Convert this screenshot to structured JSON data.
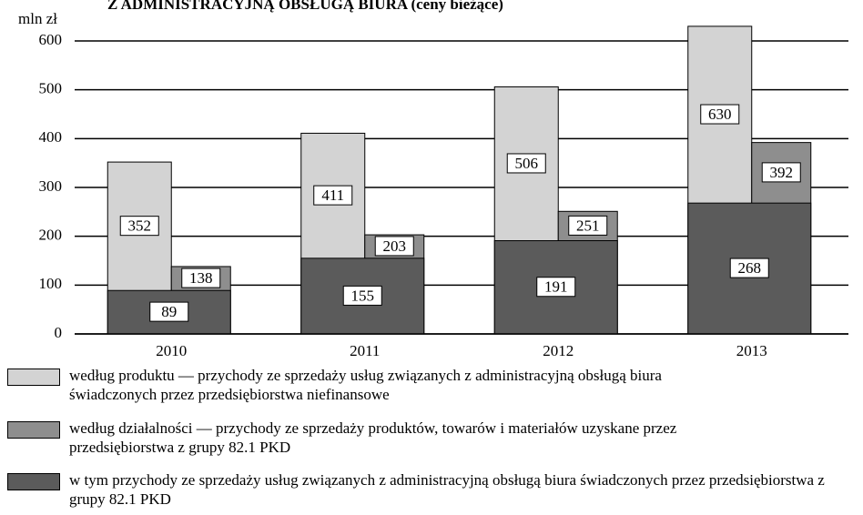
{
  "chart_data": {
    "type": "bar",
    "title": "Z ADMINISTRACYJNĄ OBSŁUGĄ BIURA (ceny bieżące)",
    "y_label": "mln zł",
    "categories": [
      "2010",
      "2011",
      "2012",
      "2013"
    ],
    "series": [
      {
        "name": "według produktu — przychody ze sprzedaży usług związanych z administracyjną obsługą biura świadczonych przez przedsiębiorstwa niefinansowe",
        "color": "#d3d3d3",
        "values": [
          352,
          411,
          506,
          630
        ]
      },
      {
        "name": "według działalności — przychody ze sprzedaży produktów, towarów i materiałów uzyskane przez przedsiębiorstwa z grupy 82.1 PKD",
        "color": "#8e8e8e",
        "values": [
          138,
          203,
          251,
          392
        ]
      },
      {
        "name": "w tym przychody ze sprzedaży usług związanych z administracyjną obsługą biura świadczonych przez przedsiębiorstwa z grupy 82.1 PKD",
        "color": "#5b5b5b",
        "values": [
          89,
          155,
          191,
          268
        ]
      }
    ],
    "ylim": [
      0,
      640
    ],
    "yticks": [
      0,
      100,
      200,
      300,
      400,
      500,
      600
    ],
    "grid": true
  }
}
